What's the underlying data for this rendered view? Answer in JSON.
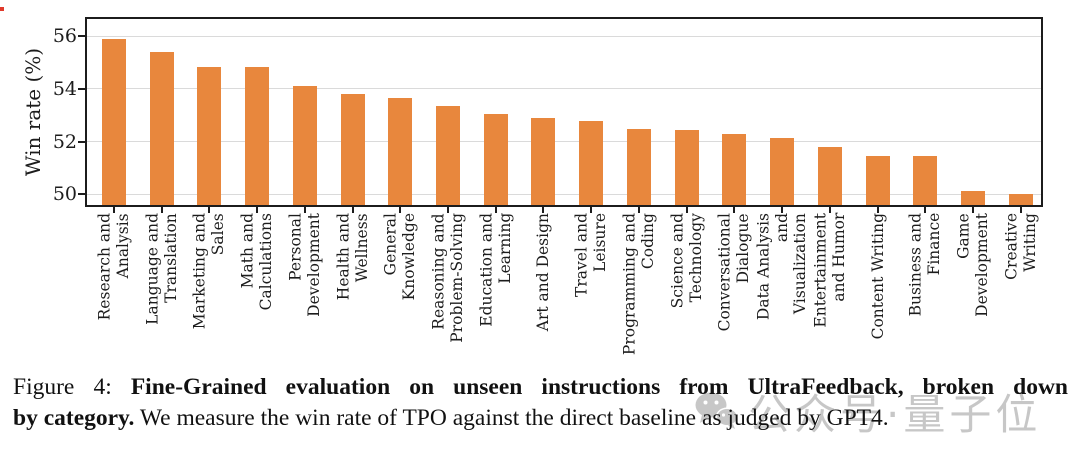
{
  "figure": {
    "caption": {
      "label": "Figure 4:",
      "bold_1": "Fine-Grained evaluation on unseen instructions from UltraFeedback, broken down",
      "bold_2": "by category.",
      "text_2": "We measure the win rate of TPO against the direct baseline as judged by GPT4."
    }
  },
  "watermark": {
    "text": "公众号·量子位"
  },
  "chart_data": {
    "type": "bar",
    "title": "",
    "xlabel": "",
    "ylabel": "Win rate (%)",
    "ylim": [
      49.6,
      56.65
    ],
    "yticks": [
      50,
      52,
      54,
      56
    ],
    "grid": "horizontal-light-gray",
    "legend": "none",
    "bar_color": "#E8873D",
    "categories": [
      "Research and Analysis",
      "Language and Translation",
      "Marketing and Sales",
      "Math and Calculations",
      "Personal Development",
      "Health and Wellness",
      "General Knowledge",
      "Reasoning and Problem-Solving",
      "Education and Learning",
      "Art and Design",
      "Travel and Leisure",
      "Programming and Coding",
      "Science and Technology",
      "Conversational Dialogue",
      "Data Analysis and Visualization",
      "Entertainment and Humor",
      "Content Writing",
      "Business and Finance",
      "Game Development",
      "Creative Writing"
    ],
    "category_label_lines": [
      [
        "Research and",
        "Analysis"
      ],
      [
        "Language and",
        "Translation"
      ],
      [
        "Marketing and",
        "Sales"
      ],
      [
        "Math and",
        "Calculations"
      ],
      [
        "Personal",
        "Development"
      ],
      [
        "Health and",
        "Wellness"
      ],
      [
        "General",
        "Knowledge"
      ],
      [
        "Reasoning and",
        "Problem-Solving"
      ],
      [
        "Education and",
        "Learning"
      ],
      [
        "Art and Design"
      ],
      [
        "Travel and",
        "Leisure"
      ],
      [
        "Programming and",
        "Coding"
      ],
      [
        "Science and",
        "Technology"
      ],
      [
        "Conversational",
        "Dialogue"
      ],
      [
        "Data Analysis",
        "and",
        "Visualization"
      ],
      [
        "Entertainment",
        "and Humor"
      ],
      [
        "Content Writing"
      ],
      [
        "Business and",
        "Finance"
      ],
      [
        "Game",
        "Development"
      ],
      [
        "Creative",
        "Writing"
      ]
    ],
    "values": [
      55.9,
      55.4,
      54.85,
      54.85,
      54.1,
      53.8,
      53.65,
      53.35,
      53.05,
      52.9,
      52.8,
      52.5,
      52.45,
      52.3,
      52.15,
      51.8,
      51.45,
      51.45,
      50.15,
      50.0
    ]
  }
}
